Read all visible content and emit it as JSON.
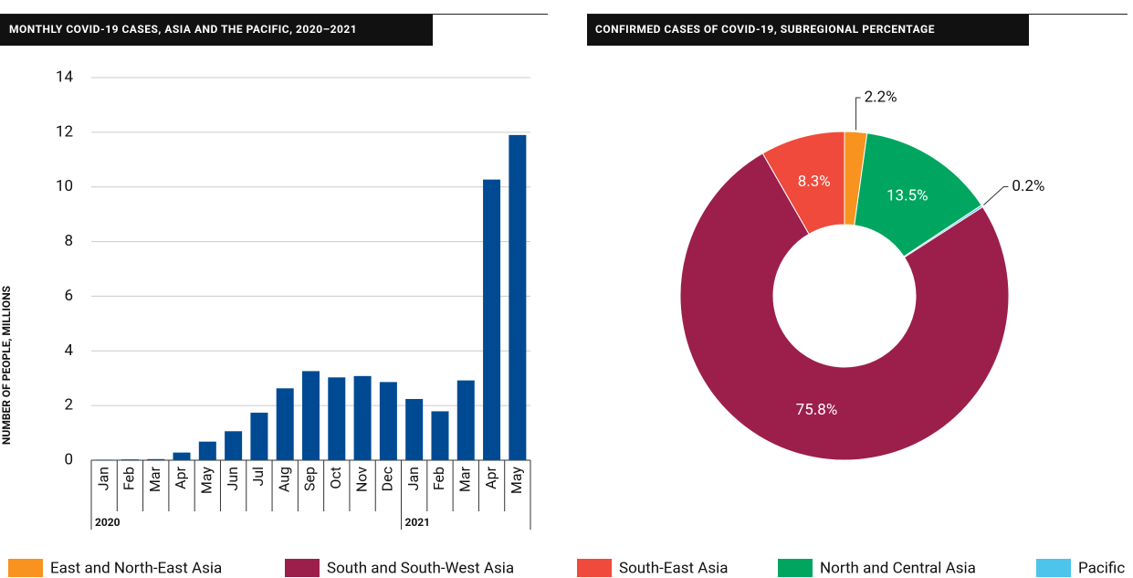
{
  "chart_data": [
    {
      "type": "bar",
      "title": "MONTHLY COVID-19 CASES, ASIA AND THE PACIFIC, 2020–2021",
      "ylabel": "NUMBER OF PEOPLE, MILLIONS",
      "categories": [
        "Jan",
        "Feb",
        "Mar",
        "Apr",
        "May",
        "Jun",
        "Jul",
        "Aug",
        "Sep",
        "Oct",
        "Nov",
        "Dec",
        "Jan",
        "Feb",
        "Mar",
        "Apr",
        "May"
      ],
      "year_labels": [
        "2020",
        "2021"
      ],
      "values": [
        0.02,
        0.03,
        0.04,
        0.28,
        0.68,
        1.06,
        1.74,
        2.63,
        3.26,
        3.03,
        3.08,
        2.86,
        2.24,
        1.79,
        2.92,
        10.27,
        11.9
      ],
      "color": "#004a93",
      "ylim": [
        0,
        14
      ],
      "yticks": [
        0,
        2,
        4,
        6,
        8,
        10,
        12,
        14
      ],
      "grid": true
    },
    {
      "type": "donut",
      "title": "CONFIRMED CASES OF COVID-19, SUBREGIONAL PERCENTAGE",
      "categories": [
        "East and North-East Asia",
        "North and Central Asia",
        "Pacific",
        "South and South-West Asia",
        "South-East Asia"
      ],
      "values": [
        2.2,
        13.5,
        0.2,
        75.8,
        8.3
      ],
      "value_labels": [
        "2.2%",
        "13.5%",
        "0.2%",
        "75.8%",
        "8.3%"
      ],
      "colors": [
        "#f7931e",
        "#00a65f",
        "#4cc4ec",
        "#9c1f4b",
        "#ef4a3b"
      ]
    }
  ]
}
